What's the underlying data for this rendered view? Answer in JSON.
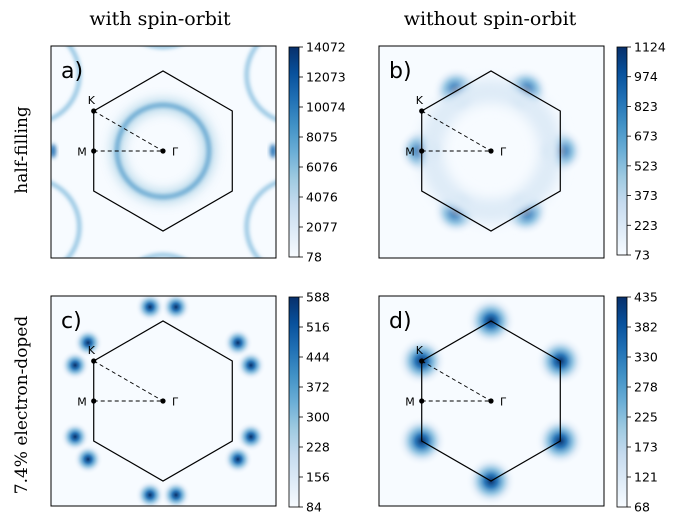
{
  "column_titles": [
    "with spin-orbit",
    "without spin-orbit"
  ],
  "row_titles": [
    "half-filling",
    "7.4% electron-doped"
  ],
  "colormap": "Blues",
  "colormap_stops": [
    "#f7fbff",
    "#deebf7",
    "#c6dbef",
    "#9ecae1",
    "#6baed6",
    "#4292c6",
    "#2171b5",
    "#08519c",
    "#08306b"
  ],
  "chart_data": [
    {
      "type": "heatmap",
      "panel_label": "a)",
      "column": "with spin-orbit",
      "row": "half-filling",
      "colorbar_ticks": [
        "14072",
        "12073",
        "10074",
        "8075",
        "6076",
        "4076",
        "2077",
        "78"
      ],
      "colorbar_range": [
        78,
        14072
      ],
      "feature": "ring",
      "high_symmetry_points": [
        "K",
        "M",
        "Γ"
      ]
    },
    {
      "type": "heatmap",
      "panel_label": "b)",
      "column": "without spin-orbit",
      "row": "half-filling",
      "colorbar_ticks": [
        "1124",
        "974",
        "823",
        "673",
        "523",
        "373",
        "223",
        "73"
      ],
      "colorbar_range": [
        73,
        1124
      ],
      "feature": "edge-midpoint blobs",
      "high_symmetry_points": [
        "K",
        "M",
        "Γ"
      ]
    },
    {
      "type": "heatmap",
      "panel_label": "c)",
      "column": "with spin-orbit",
      "row": "7.4% electron-doped",
      "colorbar_ticks": [
        "588",
        "516",
        "444",
        "372",
        "300",
        "228",
        "156",
        "84"
      ],
      "colorbar_range": [
        84,
        588
      ],
      "feature": "split pockets near K",
      "high_symmetry_points": [
        "K",
        "M",
        "Γ"
      ]
    },
    {
      "type": "heatmap",
      "panel_label": "d)",
      "column": "without spin-orbit",
      "row": "7.4% electron-doped",
      "colorbar_ticks": [
        "435",
        "382",
        "330",
        "278",
        "225",
        "173",
        "121",
        "68"
      ],
      "colorbar_range": [
        68,
        435
      ],
      "feature": "K-point blobs",
      "high_symmetry_points": [
        "K",
        "M",
        "Γ"
      ]
    }
  ]
}
